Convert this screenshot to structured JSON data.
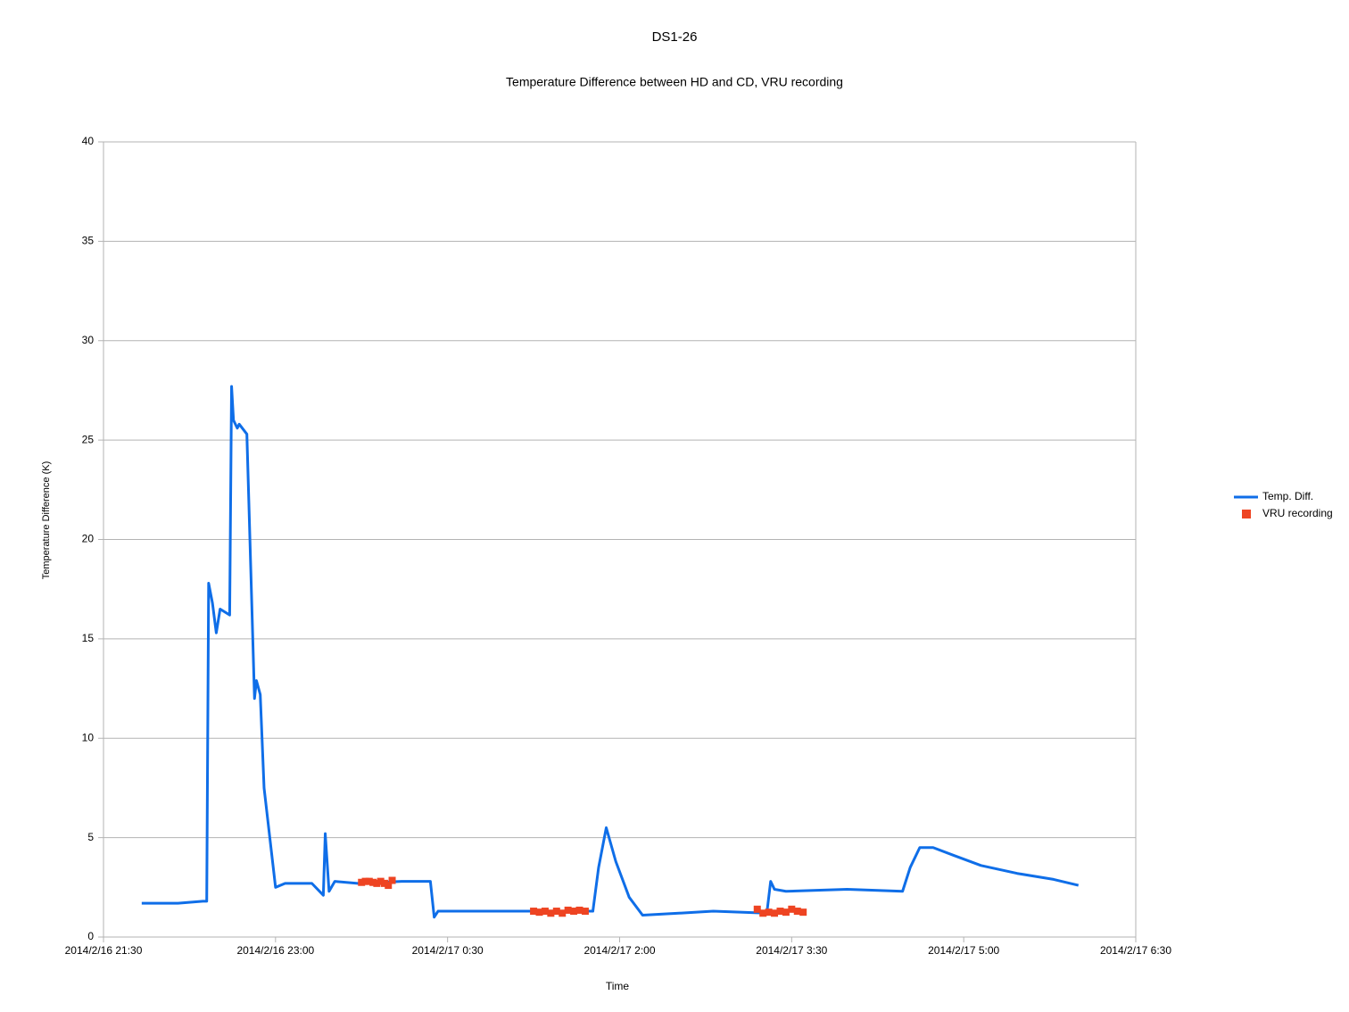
{
  "chart_data": {
    "type": "line",
    "title": "DS1-26",
    "subtitle": "Temperature Difference between HD and CD, VRU recording",
    "x_label": "Time",
    "y_label": "Temperature Difference (K)",
    "xlim": [
      "2014/2/16 21:30",
      "2014/2/17 6:30"
    ],
    "xticks": [
      "2014/2/16 21:30",
      "2014/2/16 23:00",
      "2014/2/17 0:30",
      "2014/2/17 2:00",
      "2014/2/17 3:30",
      "2014/2/17 5:00",
      "2014/2/17 6:30"
    ],
    "ylim": [
      0,
      40
    ],
    "yticks": [
      0,
      5,
      10,
      15,
      20,
      25,
      30,
      35,
      40
    ],
    "grid": true,
    "legend": "right",
    "series": [
      {
        "name": "Temp. Diff.",
        "kind": "line",
        "color": "#0f6ee8",
        "x": [
          "2014/2/16 21:50",
          "2014/2/16 22:09",
          "2014/2/16 22:22",
          "2014/2/16 22:24",
          "2014/2/16 22:25",
          "2014/2/16 22:27",
          "2014/2/16 22:29",
          "2014/2/16 22:31",
          "2014/2/16 22:36",
          "2014/2/16 22:37",
          "2014/2/16 22:38",
          "2014/2/16 22:40",
          "2014/2/16 22:41",
          "2014/2/16 22:45",
          "2014/2/16 22:46",
          "2014/2/16 22:49",
          "2014/2/16 22:50",
          "2014/2/16 22:52",
          "2014/2/16 22:54",
          "2014/2/16 23:00",
          "2014/2/16 23:05",
          "2014/2/16 23:19",
          "2014/2/16 23:25",
          "2014/2/16 23:26",
          "2014/2/16 23:28",
          "2014/2/16 23:31",
          "2014/2/16 23:43",
          "2014/2/17 0:06",
          "2014/2/17 0:21",
          "2014/2/17 0:23",
          "2014/2/17 0:25",
          "2014/2/17 0:53",
          "2014/2/17 1:16",
          "2014/2/17 1:46",
          "2014/2/17 1:49",
          "2014/2/17 1:53",
          "2014/2/17 1:58",
          "2014/2/17 2:05",
          "2014/2/17 2:12",
          "2014/2/17 2:31",
          "2014/2/17 2:49",
          "2014/2/17 3:17",
          "2014/2/17 3:19",
          "2014/2/17 3:21",
          "2014/2/17 3:27",
          "2014/2/17 3:59",
          "2014/2/17 4:28",
          "2014/2/17 4:32",
          "2014/2/17 4:37",
          "2014/2/17 4:44",
          "2014/2/17 4:55",
          "2014/2/17 5:09",
          "2014/2/17 5:28",
          "2014/2/17 5:47",
          "2014/2/17 6:00"
        ],
        "values": [
          1.7,
          1.7,
          1.8,
          1.8,
          17.8,
          16.8,
          15.3,
          16.5,
          16.2,
          27.7,
          26,
          25.6,
          25.8,
          25.3,
          22,
          12,
          12.9,
          12.2,
          7.5,
          2.5,
          2.7,
          2.7,
          2.1,
          5.2,
          2.3,
          2.8,
          2.7,
          2.8,
          2.8,
          1,
          1.3,
          1.3,
          1.3,
          1.3,
          3.5,
          5.5,
          3.8,
          2,
          1.1,
          1.2,
          1.3,
          1.2,
          2.8,
          2.4,
          2.3,
          2.4,
          2.3,
          3.5,
          4.5,
          4.5,
          4.1,
          3.6,
          3.2,
          2.9,
          2.6
        ]
      },
      {
        "name": "VRU recording",
        "kind": "scatter",
        "color": "#ee4422",
        "x": [
          "2014/2/16 23:45",
          "2014/2/16 23:47",
          "2014/2/16 23:49",
          "2014/2/16 23:51",
          "2014/2/16 23:53",
          "2014/2/16 23:55",
          "2014/2/16 23:57",
          "2014/2/16 23:59",
          "2014/2/17 0:01",
          "2014/2/17 1:15",
          "2014/2/17 1:18",
          "2014/2/17 1:21",
          "2014/2/17 1:24",
          "2014/2/17 1:27",
          "2014/2/17 1:30",
          "2014/2/17 1:33",
          "2014/2/17 1:36",
          "2014/2/17 1:39",
          "2014/2/17 1:42",
          "2014/2/17 3:12",
          "2014/2/17 3:15",
          "2014/2/17 3:18",
          "2014/2/17 3:21",
          "2014/2/17 3:24",
          "2014/2/17 3:27",
          "2014/2/17 3:30",
          "2014/2/17 3:33",
          "2014/2/17 3:36"
        ],
        "values": [
          2.75,
          2.8,
          2.8,
          2.75,
          2.7,
          2.8,
          2.7,
          2.6,
          2.85,
          1.3,
          1.25,
          1.3,
          1.2,
          1.3,
          1.2,
          1.35,
          1.3,
          1.35,
          1.3,
          1.4,
          1.2,
          1.25,
          1.2,
          1.3,
          1.25,
          1.4,
          1.3,
          1.25
        ]
      }
    ]
  }
}
